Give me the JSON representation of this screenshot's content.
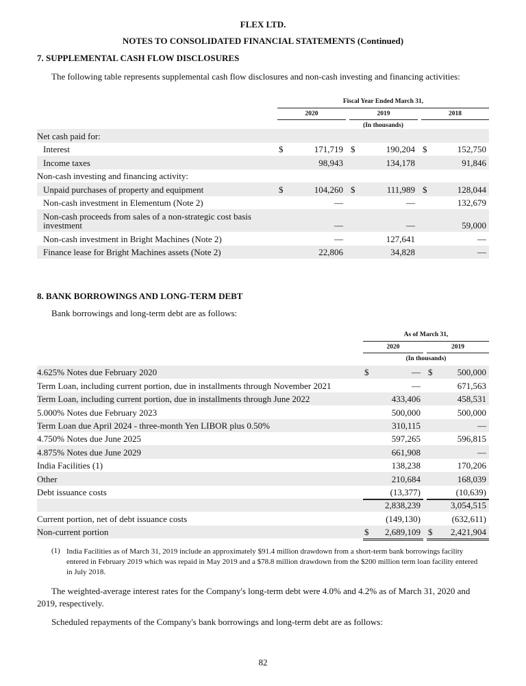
{
  "header": {
    "company": "FLEX LTD.",
    "notes_title": "NOTES TO CONSOLIDATED FINANCIAL STATEMENTS (Continued)"
  },
  "section7": {
    "heading": "7. SUPPLEMENTAL CASH FLOW DISCLOSURES",
    "intro": "The following table represents supplemental cash flow disclosures and non-cash investing and financing activities:",
    "table": {
      "period_header": "Fiscal Year Ended March 31,",
      "columns": [
        "2020",
        "2019",
        "2018"
      ],
      "units": "(In thousands)",
      "rows": [
        {
          "label": "Net cash paid for:",
          "indent": false,
          "values": [
            "",
            "",
            ""
          ]
        },
        {
          "label": "Interest",
          "indent": true,
          "dollar": true,
          "values": [
            "171,719",
            "190,204",
            "152,750"
          ]
        },
        {
          "label": "Income taxes",
          "indent": true,
          "values": [
            "98,943",
            "134,178",
            "91,846"
          ]
        },
        {
          "label": "Non-cash investing and financing activity:",
          "indent": false,
          "values": [
            "",
            "",
            ""
          ]
        },
        {
          "label": "Unpaid purchases of property and equipment",
          "indent": true,
          "dollar": true,
          "values": [
            "104,260",
            "111,989",
            "128,044"
          ]
        },
        {
          "label": "Non-cash investment in Elementum (Note 2)",
          "indent": true,
          "values": [
            "—",
            "—",
            "132,679"
          ]
        },
        {
          "label": "Non-cash proceeds from sales of a non-strategic cost basis investment",
          "indent": true,
          "tall": true,
          "values": [
            "—",
            "—",
            "59,000"
          ]
        },
        {
          "label": "Non-cash investment in Bright Machines (Note 2)",
          "indent": true,
          "values": [
            "—",
            "127,641",
            "—"
          ]
        },
        {
          "label": "Finance lease for Bright Machines assets (Note 2)",
          "indent": true,
          "values": [
            "22,806",
            "34,828",
            "—"
          ]
        }
      ]
    }
  },
  "section8": {
    "heading": "8. BANK BORROWINGS AND LONG-TERM DEBT",
    "intro": "Bank borrowings and long-term debt are as follows:",
    "table": {
      "period_header": "As of March 31,",
      "columns": [
        "2020",
        "2019"
      ],
      "units": "(In thousands)",
      "rows": [
        {
          "label": "4.625% Notes due February 2020",
          "dollar": true,
          "values": [
            "—",
            "500,000"
          ]
        },
        {
          "label": "Term Loan, including current portion, due in installments through November 2021",
          "values": [
            "—",
            "671,563"
          ]
        },
        {
          "label": "Term Loan, including current portion, due in installments through June 2022",
          "values": [
            "433,406",
            "458,531"
          ]
        },
        {
          "label": "5.000% Notes due February 2023",
          "values": [
            "500,000",
            "500,000"
          ]
        },
        {
          "label": "Term Loan due April 2024 - three-month Yen LIBOR plus 0.50%",
          "values": [
            "310,115",
            "—"
          ]
        },
        {
          "label": "4.750% Notes due June 2025",
          "values": [
            "597,265",
            "596,815"
          ]
        },
        {
          "label": "4.875% Notes due June 2029",
          "values": [
            "661,908",
            "—"
          ]
        },
        {
          "label": "India Facilities (1)",
          "values": [
            "138,238",
            "170,206"
          ]
        },
        {
          "label": "Other",
          "values": [
            "210,684",
            "168,039"
          ]
        },
        {
          "label": "Debt issuance costs",
          "values": [
            "(13,377)",
            "(10,639)"
          ]
        },
        {
          "label": "",
          "values": [
            "2,838,239",
            "3,054,515"
          ],
          "underline_top": true
        },
        {
          "label": "Current portion, net of debt issuance costs",
          "values": [
            "(149,130)",
            "(632,611)"
          ]
        },
        {
          "label": "Non-current portion",
          "dollar": true,
          "double_underline": true,
          "values": [
            "2,689,109",
            "2,421,904"
          ]
        }
      ]
    },
    "footnote_marker": "(1)",
    "footnote": "India Facilities as of March 31, 2019 include an approximately $91.4 million drawdown from a short-term bank borrowings facility entered in February 2019 which was repaid in May 2019 and a $78.8 million drawdown from the $200 million term loan facility entered in July 2018.",
    "para_rates": "The weighted-average interest rates for the Company's long-term debt were 4.0% and 4.2% as of March 31, 2020 and 2019, respectively.",
    "para_repay": "Scheduled repayments of the Company's bank borrowings and long-term debt are as follows:"
  },
  "page_number": "82"
}
